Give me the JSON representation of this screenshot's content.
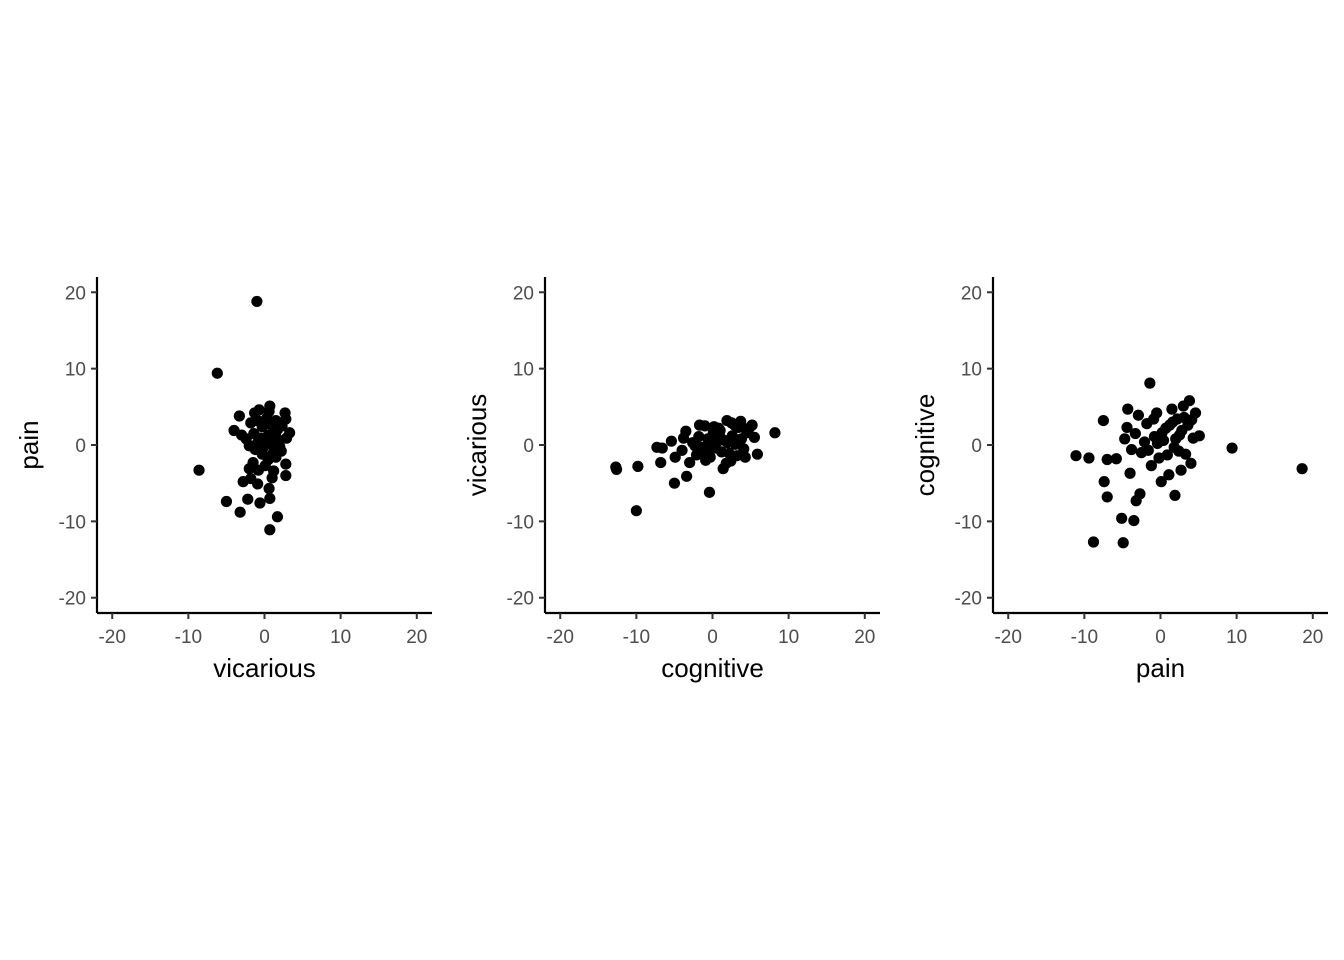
{
  "chart_data": [
    {
      "type": "scatter",
      "xlabel": "vicarious",
      "ylabel": "pain",
      "xlim": [
        -22,
        22
      ],
      "ylim": [
        -22,
        22
      ],
      "xticks": [
        "-20",
        "-10",
        "0",
        "10",
        "20"
      ],
      "yticks": [
        "-20",
        "-10",
        "0",
        "10",
        "20"
      ],
      "grid": false,
      "points": [
        [
          -1.0,
          18.8
        ],
        [
          -6.2,
          9.4
        ],
        [
          -8.6,
          -3.3
        ],
        [
          -5.0,
          -7.4
        ],
        [
          -3.2,
          -8.8
        ],
        [
          -2.2,
          -7.1
        ],
        [
          -0.6,
          -7.6
        ],
        [
          0.7,
          -7.0
        ],
        [
          0.7,
          -11.1
        ],
        [
          1.7,
          -9.4
        ],
        [
          0.6,
          -5.7
        ],
        [
          -0.9,
          -5.1
        ],
        [
          -2.8,
          -4.8
        ],
        [
          -1.8,
          -4.4
        ],
        [
          1.0,
          -4.3
        ],
        [
          2.8,
          -4.0
        ],
        [
          1.2,
          -3.4
        ],
        [
          -2.0,
          -3.1
        ],
        [
          -0.8,
          -3.3
        ],
        [
          0.1,
          -2.7
        ],
        [
          2.8,
          -2.5
        ],
        [
          -1.5,
          -2.3
        ],
        [
          0.5,
          -1.9
        ],
        [
          1.5,
          -1.6
        ],
        [
          -0.3,
          -1.2
        ],
        [
          2.2,
          -0.8
        ],
        [
          -2.0,
          -0.1
        ],
        [
          -0.9,
          0.3
        ],
        [
          0.9,
          0.1
        ],
        [
          1.9,
          0.5
        ],
        [
          2.9,
          0.9
        ],
        [
          -0.5,
          0.9
        ],
        [
          0.5,
          1.3
        ],
        [
          -1.4,
          1.5
        ],
        [
          1.3,
          1.8
        ],
        [
          3.3,
          1.6
        ],
        [
          -4.0,
          1.9
        ],
        [
          -3.0,
          1.3
        ],
        [
          -0.3,
          2.4
        ],
        [
          0.8,
          2.7
        ],
        [
          2.3,
          2.5
        ],
        [
          -1.8,
          2.9
        ],
        [
          -0.9,
          3.2
        ],
        [
          0.3,
          3.5
        ],
        [
          1.5,
          3.2
        ],
        [
          2.8,
          3.4
        ],
        [
          -3.3,
          3.8
        ],
        [
          -1.3,
          4.2
        ],
        [
          0.6,
          4.4
        ],
        [
          2.7,
          4.2
        ],
        [
          -0.7,
          4.6
        ],
        [
          0.7,
          5.1
        ],
        [
          1.7,
          2.0
        ],
        [
          -0.2,
          -0.4
        ],
        [
          1.1,
          -1.1
        ],
        [
          -1.2,
          -0.6
        ],
        [
          0.2,
          0.6
        ],
        [
          2.0,
          -0.2
        ],
        [
          -2.4,
          0.8
        ],
        [
          1.6,
          0.9
        ]
      ]
    },
    {
      "type": "scatter",
      "xlabel": "cognitive",
      "ylabel": "vicarious",
      "xlim": [
        -22,
        22
      ],
      "ylim": [
        -22,
        22
      ],
      "xticks": [
        "-20",
        "-10",
        "0",
        "10",
        "20"
      ],
      "yticks": [
        "-20",
        "-10",
        "0",
        "10",
        "20"
      ],
      "grid": false,
      "points": [
        [
          -12.7,
          -2.9
        ],
        [
          -12.6,
          -3.2
        ],
        [
          -9.8,
          -2.8
        ],
        [
          -10.0,
          -8.6
        ],
        [
          -0.4,
          -6.2
        ],
        [
          -5.0,
          -5.0
        ],
        [
          -3.4,
          -4.1
        ],
        [
          -7.3,
          -0.3
        ],
        [
          -6.6,
          -0.4
        ],
        [
          -6.8,
          -2.3
        ],
        [
          -5.4,
          0.5
        ],
        [
          -4.9,
          -1.6
        ],
        [
          -4.0,
          -0.7
        ],
        [
          -3.5,
          1.8
        ],
        [
          -3.0,
          -2.3
        ],
        [
          -2.6,
          0.3
        ],
        [
          -2.1,
          -1.3
        ],
        [
          -1.8,
          1.1
        ],
        [
          -1.4,
          -0.3
        ],
        [
          -1.0,
          2.5
        ],
        [
          -0.6,
          0.8
        ],
        [
          -0.3,
          -1.6
        ],
        [
          0.1,
          1.6
        ],
        [
          0.4,
          -0.4
        ],
        [
          0.8,
          2.2
        ],
        [
          1.2,
          -0.9
        ],
        [
          1.6,
          0.6
        ],
        [
          1.9,
          3.2
        ],
        [
          2.2,
          -1.1
        ],
        [
          2.6,
          1.2
        ],
        [
          3.0,
          0.1
        ],
        [
          3.4,
          2.3
        ],
        [
          3.7,
          3.1
        ],
        [
          4.1,
          -0.5
        ],
        [
          4.5,
          1.6
        ],
        [
          5.2,
          2.6
        ],
        [
          5.5,
          1.0
        ],
        [
          5.9,
          -1.2
        ],
        [
          8.2,
          1.6
        ],
        [
          4.3,
          -1.6
        ],
        [
          1.4,
          -3.1
        ],
        [
          -0.9,
          -2.0
        ],
        [
          2.4,
          -2.1
        ],
        [
          -1.7,
          2.6
        ],
        [
          0.6,
          0.4
        ],
        [
          2.9,
          2.6
        ],
        [
          -2.3,
          -0.1
        ],
        [
          3.8,
          0.8
        ],
        [
          1.0,
          1.9
        ],
        [
          -0.1,
          0.2
        ],
        [
          4.8,
          2.2
        ],
        [
          -3.8,
          0.9
        ],
        [
          2.0,
          0.3
        ],
        [
          1.8,
          -2.4
        ],
        [
          3.2,
          -1.4
        ],
        [
          -1.2,
          -1.0
        ],
        [
          0.2,
          2.4
        ],
        [
          2.5,
          2.9
        ],
        [
          -0.5,
          -0.8
        ],
        [
          1.1,
          0.9
        ]
      ]
    },
    {
      "type": "scatter",
      "xlabel": "pain",
      "ylabel": "cognitive",
      "xlim": [
        -22,
        22
      ],
      "ylim": [
        -22,
        22
      ],
      "xticks": [
        "-20",
        "-10",
        "0",
        "10",
        "20"
      ],
      "yticks": [
        "-20",
        "-10",
        "0",
        "10",
        "20"
      ],
      "grid": false,
      "points": [
        [
          -11.1,
          -1.4
        ],
        [
          -9.4,
          -1.7
        ],
        [
          -8.8,
          -12.7
        ],
        [
          -7.5,
          3.2
        ],
        [
          -7.4,
          -4.8
        ],
        [
          -7.0,
          -6.8
        ],
        [
          -7.0,
          -1.9
        ],
        [
          -5.8,
          -1.8
        ],
        [
          -5.1,
          -9.6
        ],
        [
          -4.9,
          -12.8
        ],
        [
          -4.3,
          4.7
        ],
        [
          -4.0,
          -3.7
        ],
        [
          -3.5,
          -9.9
        ],
        [
          -3.2,
          -7.3
        ],
        [
          -2.7,
          -6.4
        ],
        [
          -4.7,
          0.8
        ],
        [
          -4.4,
          2.3
        ],
        [
          -3.8,
          -0.6
        ],
        [
          -3.3,
          1.5
        ],
        [
          -2.9,
          3.9
        ],
        [
          -2.5,
          -1.0
        ],
        [
          -2.1,
          0.4
        ],
        [
          -1.8,
          2.8
        ],
        [
          -1.4,
          8.1
        ],
        [
          -1.2,
          -2.7
        ],
        [
          -0.8,
          1.1
        ],
        [
          -0.5,
          4.2
        ],
        [
          -0.2,
          -1.7
        ],
        [
          0.1,
          -4.8
        ],
        [
          0.4,
          0.6
        ],
        [
          0.7,
          2.2
        ],
        [
          1.1,
          -3.9
        ],
        [
          1.5,
          4.7
        ],
        [
          1.8,
          -0.3
        ],
        [
          1.9,
          -6.6
        ],
        [
          2.2,
          3.4
        ],
        [
          2.5,
          1.3
        ],
        [
          2.7,
          -3.3
        ],
        [
          3.0,
          5.1
        ],
        [
          3.3,
          -1.2
        ],
        [
          3.6,
          2.6
        ],
        [
          3.8,
          5.8
        ],
        [
          4.0,
          -2.4
        ],
        [
          4.3,
          0.9
        ],
        [
          4.6,
          4.2
        ],
        [
          5.1,
          1.2
        ],
        [
          9.4,
          -0.4
        ],
        [
          18.6,
          -3.1
        ],
        [
          -0.9,
          3.4
        ],
        [
          2.0,
          0.8
        ],
        [
          1.2,
          2.6
        ],
        [
          -1.6,
          -0.7
        ],
        [
          3.1,
          3.6
        ],
        [
          0.9,
          -1.3
        ],
        [
          2.8,
          1.9
        ],
        [
          -0.4,
          0.2
        ],
        [
          1.6,
          3.0
        ],
        [
          4.1,
          3.3
        ],
        [
          0.2,
          1.6
        ],
        [
          2.4,
          -0.8
        ]
      ]
    }
  ]
}
